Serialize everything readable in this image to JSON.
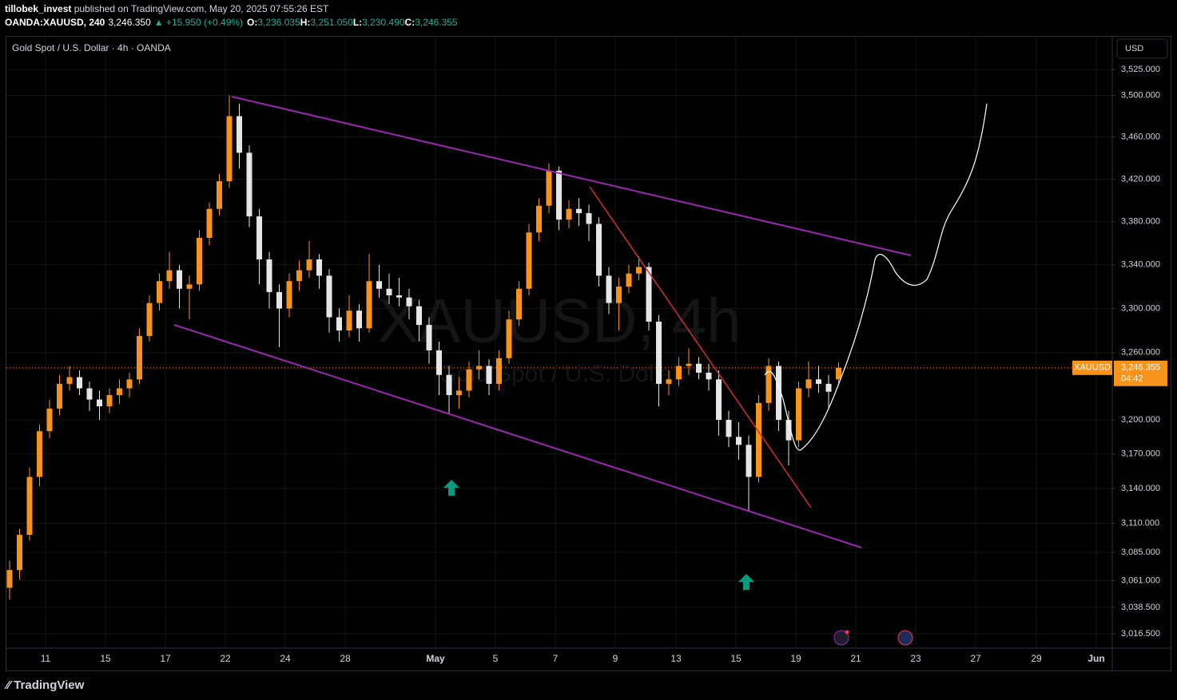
{
  "header": {
    "publisher": "tillobek_invest",
    "published": " published on TradingView.com, May 20, 2025 07:55:26 EST",
    "symbol": "OANDA:XAUUSD, 240",
    "last": "3,246.350",
    "change": "▲ +15.950 (+0.49%)",
    "o_label": "O:",
    "o": "3,236.035",
    "h_label": "H:",
    "h": "3,251.050",
    "l_label": "L:",
    "l": "3,230.490",
    "c_label": "C:",
    "c": "3,246.355"
  },
  "currency": "USD",
  "footer": "TradingView",
  "chart_data": {
    "type": "candlestick",
    "title": "Gold Spot / U.S. Dollar · 4h · OANDA",
    "watermark": "XAUUSD, 4h",
    "watermark_subtitle": "Gold Spot / U.S. Dollar",
    "symbol_label": "XAUUSD",
    "price_label": "3,246.355",
    "countdown": "04:42",
    "up_color": "#f7931a",
    "down_color": "#e6e6e6",
    "log_scale": true,
    "grid": true,
    "ylim": [
      3004.5,
      3558
    ],
    "yticks": [
      {
        "value": 3525,
        "label": "3,525.000"
      },
      {
        "value": 3500,
        "label": "3,500.000"
      },
      {
        "value": 3460,
        "label": "3,460.000"
      },
      {
        "value": 3420,
        "label": "3,420.000"
      },
      {
        "value": 3380,
        "label": "3,380.000"
      },
      {
        "value": 3340,
        "label": "3,340.000"
      },
      {
        "value": 3300,
        "label": "3,300.000"
      },
      {
        "value": 3260,
        "label": "3,260.000"
      },
      {
        "value": 3200,
        "label": "3,200.000"
      },
      {
        "value": 3170,
        "label": "3,170.000"
      },
      {
        "value": 3140,
        "label": "3,140.000"
      },
      {
        "value": 3110,
        "label": "3,110.000"
      },
      {
        "value": 3085,
        "label": "3,085.000"
      },
      {
        "value": 3061,
        "label": "3,061.000"
      },
      {
        "value": 3038.5,
        "label": "3,038.500"
      },
      {
        "value": 3016.5,
        "label": "3,016.500"
      }
    ],
    "xlim": [
      -0.96,
      110.24
    ],
    "xticks": [
      {
        "value": 3.6,
        "label": "11"
      },
      {
        "value": 9.6,
        "label": "15"
      },
      {
        "value": 15.6,
        "label": "17"
      },
      {
        "value": 21.6,
        "label": "22"
      },
      {
        "value": 27.6,
        "label": "24"
      },
      {
        "value": 33.6,
        "label": "28"
      },
      {
        "value": 42.64,
        "label": "May"
      },
      {
        "value": 48.64,
        "label": "5"
      },
      {
        "value": 54.64,
        "label": "7"
      },
      {
        "value": 60.64,
        "label": "9"
      },
      {
        "value": 66.72,
        "label": "13"
      },
      {
        "value": 72.72,
        "label": "15"
      },
      {
        "value": 78.72,
        "label": "19"
      },
      {
        "value": 84.72,
        "label": "21"
      },
      {
        "value": 90.72,
        "label": "23"
      },
      {
        "value": 96.72,
        "label": "27"
      },
      {
        "value": 102.8,
        "label": "29"
      },
      {
        "value": 108.8,
        "label": "Jun"
      }
    ],
    "ohlc": [
      [
        3055,
        3078,
        3045,
        3070
      ],
      [
        3070,
        3105,
        3062,
        3100
      ],
      [
        3100,
        3158,
        3095,
        3150
      ],
      [
        3150,
        3196,
        3142,
        3190
      ],
      [
        3190,
        3218,
        3184,
        3210
      ],
      [
        3210,
        3240,
        3204,
        3232
      ],
      [
        3232,
        3248,
        3226,
        3238
      ],
      [
        3238,
        3244,
        3222,
        3228
      ],
      [
        3228,
        3234,
        3208,
        3218
      ],
      [
        3218,
        3226,
        3200,
        3212
      ],
      [
        3212,
        3228,
        3206,
        3222
      ],
      [
        3222,
        3236,
        3214,
        3228
      ],
      [
        3228,
        3242,
        3220,
        3236
      ],
      [
        3236,
        3282,
        3232,
        3275
      ],
      [
        3275,
        3312,
        3270,
        3305
      ],
      [
        3305,
        3332,
        3298,
        3325
      ],
      [
        3325,
        3352,
        3318,
        3335
      ],
      [
        3335,
        3340,
        3300,
        3318
      ],
      [
        3318,
        3330,
        3290,
        3322
      ],
      [
        3322,
        3372,
        3316,
        3365
      ],
      [
        3365,
        3398,
        3358,
        3392
      ],
      [
        3392,
        3425,
        3386,
        3418
      ],
      [
        3418,
        3500,
        3412,
        3480
      ],
      [
        3480,
        3492,
        3430,
        3445
      ],
      [
        3445,
        3452,
        3375,
        3385
      ],
      [
        3385,
        3392,
        3322,
        3345
      ],
      [
        3345,
        3352,
        3300,
        3315
      ],
      [
        3315,
        3322,
        3265,
        3300
      ],
      [
        3300,
        3332,
        3292,
        3325
      ],
      [
        3325,
        3344,
        3316,
        3335
      ],
      [
        3335,
        3362,
        3328,
        3345
      ],
      [
        3345,
        3350,
        3318,
        3330
      ],
      [
        3330,
        3336,
        3278,
        3292
      ],
      [
        3292,
        3300,
        3270,
        3280
      ],
      [
        3280,
        3312,
        3274,
        3298
      ],
      [
        3298,
        3304,
        3270,
        3282
      ],
      [
        3282,
        3350,
        3278,
        3325
      ],
      [
        3325,
        3340,
        3310,
        3318
      ],
      [
        3318,
        3332,
        3304,
        3312
      ],
      [
        3312,
        3328,
        3302,
        3310
      ],
      [
        3310,
        3318,
        3290,
        3302
      ],
      [
        3302,
        3308,
        3270,
        3285
      ],
      [
        3285,
        3292,
        3250,
        3262
      ],
      [
        3262,
        3270,
        3222,
        3240
      ],
      [
        3240,
        3248,
        3205,
        3222
      ],
      [
        3222,
        3238,
        3210,
        3226
      ],
      [
        3226,
        3252,
        3220,
        3245
      ],
      [
        3245,
        3262,
        3236,
        3248
      ],
      [
        3248,
        3254,
        3222,
        3232
      ],
      [
        3232,
        3262,
        3226,
        3255
      ],
      [
        3255,
        3298,
        3250,
        3290
      ],
      [
        3290,
        3325,
        3284,
        3318
      ],
      [
        3318,
        3378,
        3312,
        3370
      ],
      [
        3370,
        3402,
        3362,
        3395
      ],
      [
        3395,
        3435,
        3388,
        3428
      ],
      [
        3428,
        3432,
        3372,
        3382
      ],
      [
        3382,
        3400,
        3374,
        3392
      ],
      [
        3392,
        3402,
        3376,
        3388
      ],
      [
        3388,
        3396,
        3362,
        3378
      ],
      [
        3378,
        3384,
        3320,
        3330
      ],
      [
        3330,
        3338,
        3295,
        3305
      ],
      [
        3305,
        3328,
        3280,
        3320
      ],
      [
        3320,
        3340,
        3314,
        3332
      ],
      [
        3332,
        3348,
        3326,
        3338
      ],
      [
        3338,
        3342,
        3280,
        3288
      ],
      [
        3288,
        3294,
        3212,
        3232
      ],
      [
        3232,
        3244,
        3222,
        3236
      ],
      [
        3236,
        3256,
        3230,
        3248
      ],
      [
        3248,
        3264,
        3240,
        3250
      ],
      [
        3250,
        3256,
        3236,
        3242
      ],
      [
        3242,
        3250,
        3226,
        3236
      ],
      [
        3236,
        3244,
        3186,
        3200
      ],
      [
        3200,
        3208,
        3176,
        3185
      ],
      [
        3185,
        3198,
        3165,
        3178
      ],
      [
        3178,
        3186,
        3120,
        3150
      ],
      [
        3150,
        3222,
        3145,
        3215
      ],
      [
        3215,
        3255,
        3208,
        3248
      ],
      [
        3248,
        3252,
        3190,
        3200
      ],
      [
        3200,
        3208,
        3160,
        3182
      ],
      [
        3182,
        3234,
        3176,
        3228
      ],
      [
        3228,
        3252,
        3220,
        3236
      ],
      [
        3236,
        3248,
        3224,
        3232
      ],
      [
        3232,
        3240,
        3210,
        3225
      ],
      [
        3236.035,
        3251.05,
        3230.49,
        3246.355
      ]
    ]
  }
}
